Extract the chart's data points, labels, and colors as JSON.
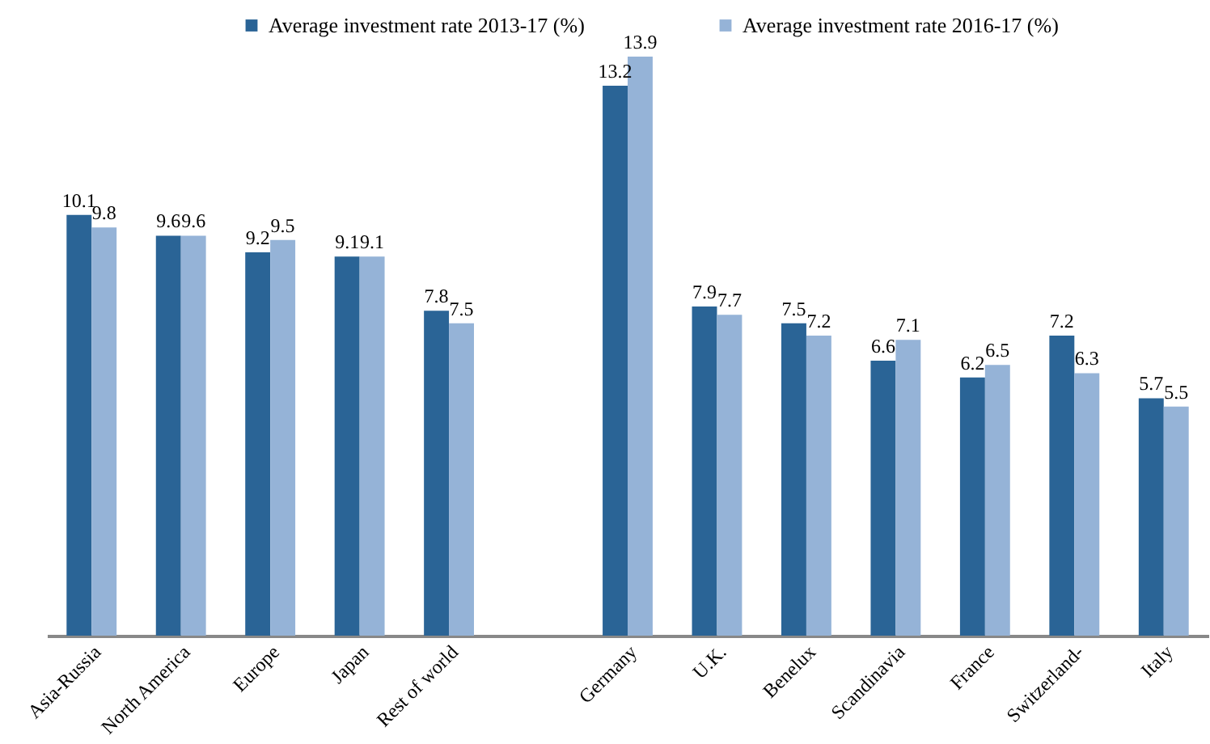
{
  "chart_data": {
    "type": "bar",
    "categories": [
      "Asia-Russia",
      "North America",
      "Europe",
      "Japan",
      "Rest of world",
      null,
      "Germany",
      "U.K.",
      "Benelux",
      "Scandinavia",
      "France",
      "Switzerland-",
      "Italy"
    ],
    "series": [
      {
        "name": "Average investment rate 2013-17 (%)",
        "color": "#2a6496",
        "values": [
          10.1,
          9.6,
          9.2,
          9.1,
          7.8,
          null,
          13.2,
          7.9,
          7.5,
          6.6,
          6.2,
          7.2,
          5.7
        ]
      },
      {
        "name": "Average investment rate 2016-17 (%)",
        "color": "#95b3d7",
        "values": [
          9.8,
          9.6,
          9.5,
          9.1,
          7.5,
          null,
          13.9,
          7.7,
          7.2,
          7.1,
          6.5,
          6.3,
          5.5
        ]
      }
    ],
    "data_labels": true,
    "legend": "top"
  }
}
